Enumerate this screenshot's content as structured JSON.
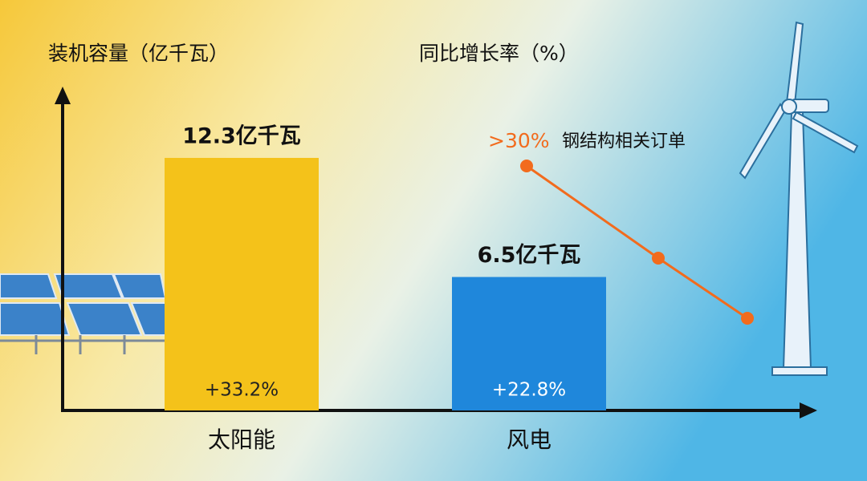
{
  "chart_data": {
    "type": "bar",
    "ylabel": "装机容量（亿千瓦）",
    "y2label": "同比增长率（%）",
    "categories": [
      "太阳能",
      "风电"
    ],
    "values": [
      12.3,
      6.5
    ],
    "value_labels": [
      "12.3亿千瓦",
      "6.5亿千瓦"
    ],
    "colors": [
      "#f4c21a",
      "#1f87db"
    ],
    "growth": {
      "values": [
        33.2,
        22.8
      ],
      "value_labels": [
        "+33.2%",
        "+22.8%"
      ]
    },
    "ylim": [
      0,
      15.5
    ],
    "annotation": {
      "label": ">30%",
      "text": "钢结构相关订单",
      "color": "#f26b1d"
    }
  }
}
